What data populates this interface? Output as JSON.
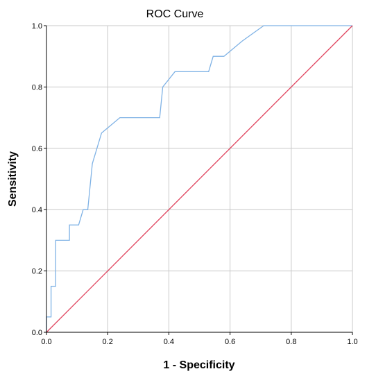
{
  "colors": {
    "roc_curve": "#7fb2e5",
    "reference_line": "#e0445e",
    "grid": "#c8c8c8",
    "axis": "#000000",
    "background": "#ffffff"
  },
  "chart_data": {
    "type": "line",
    "title": "ROC Curve",
    "xlabel": "1 - Specificity",
    "ylabel": "Sensitivity",
    "xlim": [
      0.0,
      1.0
    ],
    "ylim": [
      0.0,
      1.0
    ],
    "x_ticks": [
      "0.0",
      "0.2",
      "0.4",
      "0.6",
      "0.8",
      "1.0"
    ],
    "y_ticks": [
      "0.0",
      "0.2",
      "0.4",
      "0.6",
      "0.8",
      "1.0"
    ],
    "grid": true,
    "legend": "none",
    "series": [
      {
        "x": [
          0.0,
          0.0,
          0.015,
          0.015,
          0.03,
          0.03,
          0.075,
          0.075,
          0.105,
          0.12,
          0.135,
          0.15,
          0.18,
          0.24,
          0.37,
          0.38,
          0.42,
          0.53,
          0.545,
          0.58,
          0.64,
          0.71,
          1.0
        ],
        "y": [
          0.0,
          0.05,
          0.05,
          0.15,
          0.15,
          0.3,
          0.3,
          0.35,
          0.35,
          0.4,
          0.4,
          0.55,
          0.65,
          0.7,
          0.7,
          0.8,
          0.85,
          0.85,
          0.9,
          0.9,
          0.95,
          1.0,
          1.0
        ]
      },
      {
        "x": [
          0.0,
          1.0
        ],
        "y": [
          0.0,
          1.0
        ]
      }
    ]
  }
}
